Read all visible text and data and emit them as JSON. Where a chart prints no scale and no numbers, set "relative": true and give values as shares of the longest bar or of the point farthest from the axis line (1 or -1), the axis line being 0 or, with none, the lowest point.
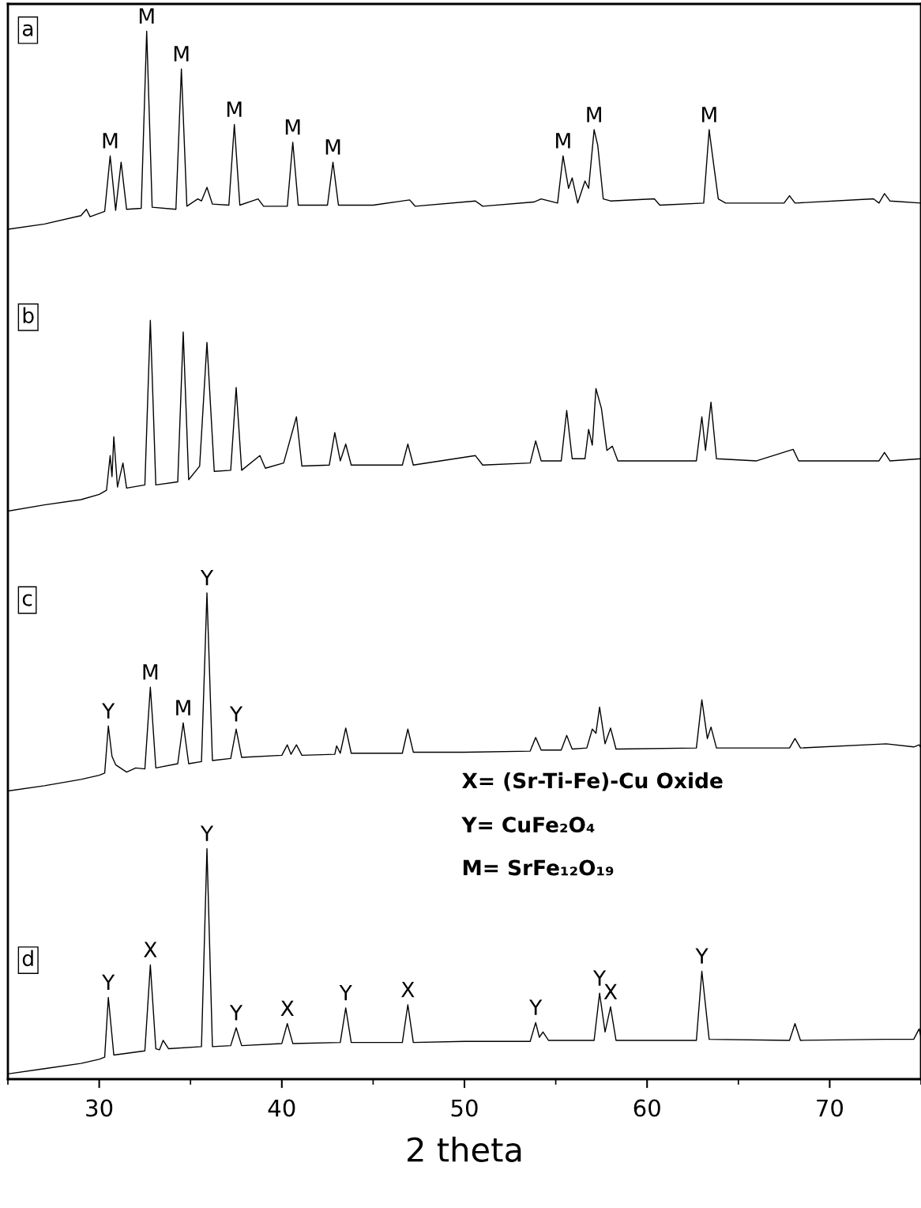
{
  "chart_data": {
    "type": "line",
    "relative": true,
    "xlabel": "2 theta",
    "xlim": [
      25,
      75
    ],
    "xticks": [
      30,
      40,
      50,
      60,
      70
    ],
    "tick_labels": "x",
    "grid": false,
    "legend": false,
    "series": [
      {
        "color": "#000000",
        "x": [
          25,
          27,
          29,
          29.3,
          29.5,
          30.3,
          30.6,
          30.9,
          31.2,
          31.5,
          32.3,
          32.6,
          32.9,
          34.2,
          34.5,
          34.8,
          35.4,
          35.6,
          35.9,
          36.2,
          37.1,
          37.4,
          37.7,
          38.7,
          39.0,
          40.3,
          40.6,
          40.9,
          42.5,
          42.8,
          43.1,
          45,
          47,
          47.3,
          50.6,
          51,
          53.8,
          54.2,
          55.1,
          55.4,
          55.7,
          55.9,
          56.2,
          56.6,
          56.8,
          57.1,
          57.3,
          57.6,
          58.0,
          60.4,
          60.7,
          63.1,
          63.4,
          63.6,
          63.9,
          64.3,
          67.5,
          67.8,
          68.1,
          72.4,
          72.7,
          73.0,
          73.3,
          75
        ],
        "values": [
          0.811,
          0.816,
          0.824,
          0.83,
          0.823,
          0.828,
          0.881,
          0.829,
          0.875,
          0.83,
          0.831,
          1.0,
          0.832,
          0.83,
          0.964,
          0.833,
          0.84,
          0.838,
          0.851,
          0.835,
          0.834,
          0.911,
          0.834,
          0.84,
          0.833,
          0.833,
          0.894,
          0.834,
          0.834,
          0.875,
          0.834,
          0.834,
          0.839,
          0.833,
          0.838,
          0.833,
          0.837,
          0.84,
          0.836,
          0.881,
          0.85,
          0.86,
          0.836,
          0.857,
          0.85,
          0.906,
          0.891,
          0.84,
          0.838,
          0.84,
          0.834,
          0.836,
          0.906,
          0.879,
          0.84,
          0.836,
          0.836,
          0.843,
          0.836,
          0.84,
          0.836,
          0.845,
          0.838,
          0.836
        ]
      },
      {
        "color": "#000000",
        "x": [
          25,
          27,
          29,
          30,
          30.4,
          30.6,
          30.7,
          30.8,
          31.0,
          31.3,
          31.5,
          32.5,
          32.8,
          33.1,
          34.3,
          34.6,
          34.9,
          35.5,
          35.9,
          36.3,
          37.2,
          37.5,
          37.8,
          38.8,
          39.1,
          40.1,
          40.8,
          41.1,
          42.6,
          42.9,
          43.2,
          43.5,
          43.8,
          46.6,
          46.9,
          47.2,
          50.6,
          51,
          53.6,
          53.9,
          54.2,
          55.3,
          55.6,
          55.9,
          56.6,
          56.8,
          57.0,
          57.2,
          57.5,
          57.8,
          58.1,
          58.4,
          62.7,
          63.0,
          63.2,
          63.5,
          63.8,
          66,
          68.0,
          68.3,
          72.7,
          73.0,
          73.3,
          75
        ],
        "values": [
          0.542,
          0.548,
          0.553,
          0.558,
          0.562,
          0.595,
          0.575,
          0.613,
          0.565,
          0.588,
          0.564,
          0.567,
          0.724,
          0.567,
          0.57,
          0.713,
          0.572,
          0.585,
          0.703,
          0.58,
          0.581,
          0.66,
          0.581,
          0.595,
          0.583,
          0.588,
          0.632,
          0.585,
          0.586,
          0.617,
          0.59,
          0.606,
          0.586,
          0.586,
          0.606,
          0.586,
          0.595,
          0.586,
          0.588,
          0.609,
          0.59,
          0.59,
          0.638,
          0.592,
          0.592,
          0.62,
          0.605,
          0.659,
          0.64,
          0.6,
          0.604,
          0.59,
          0.59,
          0.632,
          0.6,
          0.646,
          0.592,
          0.59,
          0.601,
          0.59,
          0.59,
          0.598,
          0.59,
          0.592
        ]
      },
      {
        "color": "#000000",
        "x": [
          25,
          27,
          29,
          30,
          30.3,
          30.5,
          30.7,
          30.9,
          31.5,
          32.0,
          32.5,
          32.8,
          33.1,
          34.3,
          34.6,
          34.9,
          35.6,
          35.9,
          36.2,
          37.2,
          37.5,
          37.8,
          40.0,
          40.3,
          40.5,
          40.8,
          41.1,
          42.9,
          43.0,
          43.2,
          43.5,
          43.8,
          46.6,
          46.9,
          47.2,
          50,
          53.6,
          53.9,
          54.2,
          55.3,
          55.6,
          55.9,
          56.7,
          57.0,
          57.2,
          57.4,
          57.7,
          58.0,
          58.3,
          62.7,
          63.0,
          63.3,
          63.5,
          63.8,
          67.8,
          68.1,
          68.4,
          73.1,
          74.6,
          74.9,
          75
        ],
        "values": [
          0.275,
          0.28,
          0.286,
          0.29,
          0.292,
          0.337,
          0.308,
          0.3,
          0.293,
          0.297,
          0.296,
          0.374,
          0.297,
          0.301,
          0.34,
          0.301,
          0.303,
          0.464,
          0.304,
          0.306,
          0.334,
          0.307,
          0.309,
          0.319,
          0.31,
          0.319,
          0.309,
          0.31,
          0.318,
          0.311,
          0.335,
          0.311,
          0.311,
          0.334,
          0.312,
          0.312,
          0.313,
          0.326,
          0.314,
          0.314,
          0.328,
          0.315,
          0.316,
          0.334,
          0.33,
          0.355,
          0.32,
          0.335,
          0.315,
          0.316,
          0.362,
          0.325,
          0.336,
          0.316,
          0.316,
          0.325,
          0.316,
          0.32,
          0.317,
          0.319,
          0.316
        ]
      },
      {
        "color": "#000000",
        "x": [
          25,
          27,
          29,
          30,
          30.3,
          30.5,
          30.8,
          32.5,
          32.8,
          33.1,
          33.3,
          33.5,
          33.8,
          35.6,
          35.9,
          36.2,
          37.2,
          37.5,
          37.8,
          40.0,
          40.3,
          40.6,
          43.2,
          43.5,
          43.8,
          46.6,
          46.9,
          47.2,
          50,
          53.6,
          53.9,
          54.1,
          54.3,
          54.6,
          57.1,
          57.4,
          57.7,
          58.0,
          58.3,
          62.7,
          63.0,
          63.4,
          67.8,
          68.1,
          68.4,
          73,
          74.6,
          74.9,
          75
        ],
        "values": [
          0.005,
          0.01,
          0.015,
          0.019,
          0.021,
          0.078,
          0.023,
          0.027,
          0.109,
          0.029,
          0.028,
          0.037,
          0.029,
          0.031,
          0.22,
          0.031,
          0.032,
          0.049,
          0.032,
          0.034,
          0.053,
          0.034,
          0.035,
          0.068,
          0.035,
          0.035,
          0.071,
          0.035,
          0.036,
          0.036,
          0.054,
          0.04,
          0.045,
          0.037,
          0.037,
          0.082,
          0.045,
          0.069,
          0.037,
          0.037,
          0.103,
          0.038,
          0.037,
          0.053,
          0.037,
          0.038,
          0.038,
          0.048,
          0.04
        ]
      }
    ],
    "annotations": [
      "a",
      "b",
      "c",
      "d",
      "X= (Sr-Ti-Fe)-Cu Oxide",
      "Y= CuFe₂O₄",
      "M= SrFe₁₂O₁₉",
      {
        "text": "M",
        "x": 30.6,
        "y": 0.881
      },
      {
        "text": "M",
        "x": 32.6,
        "y": 1.0
      },
      {
        "text": "M",
        "x": 34.5,
        "y": 0.964
      },
      {
        "text": "M",
        "x": 37.4,
        "y": 0.911
      },
      {
        "text": "M",
        "x": 40.6,
        "y": 0.894
      },
      {
        "text": "M",
        "x": 42.8,
        "y": 0.875
      },
      {
        "text": "M",
        "x": 55.4,
        "y": 0.881
      },
      {
        "text": "M",
        "x": 57.1,
        "y": 0.906
      },
      {
        "text": "M",
        "x": 63.4,
        "y": 0.906
      },
      {
        "text": "Y",
        "x": 30.5,
        "y": 0.337
      },
      {
        "text": "M",
        "x": 32.8,
        "y": 0.374
      },
      {
        "text": "M",
        "x": 34.6,
        "y": 0.34
      },
      {
        "text": "Y",
        "x": 35.9,
        "y": 0.464
      },
      {
        "text": "Y",
        "x": 37.5,
        "y": 0.334
      },
      {
        "text": "Y",
        "x": 30.5,
        "y": 0.078
      },
      {
        "text": "X",
        "x": 32.8,
        "y": 0.109
      },
      {
        "text": "Y",
        "x": 35.9,
        "y": 0.22
      },
      {
        "text": "Y",
        "x": 37.5,
        "y": 0.049
      },
      {
        "text": "X",
        "x": 40.3,
        "y": 0.053
      },
      {
        "text": "Y",
        "x": 43.5,
        "y": 0.068
      },
      {
        "text": "X",
        "x": 46.9,
        "y": 0.071
      },
      {
        "text": "Y",
        "x": 53.9,
        "y": 0.054
      },
      {
        "text": "Y",
        "x": 57.4,
        "y": 0.082
      },
      {
        "text": "X",
        "x": 58.0,
        "y": 0.069
      },
      {
        "text": "Y",
        "x": 63.0,
        "y": 0.103
      }
    ]
  }
}
